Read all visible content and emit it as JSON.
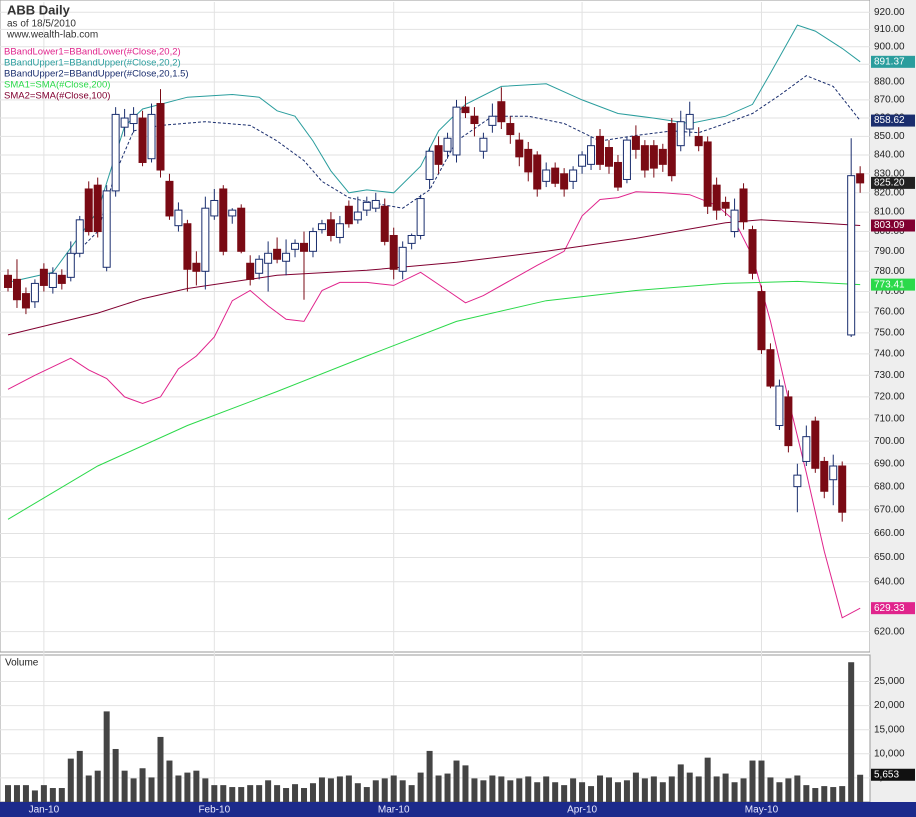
{
  "chart_data": [
    {
      "type": "candlestick",
      "title": "ABB Daily",
      "subtitle": "as of 18/5/2010",
      "source": "www.wealth-lab.com",
      "open": [
        778,
        776,
        769,
        765,
        781,
        772,
        778,
        777,
        789,
        822,
        824,
        782,
        821,
        855,
        857,
        860,
        838,
        868,
        826,
        803,
        804,
        784,
        780,
        808,
        822,
        808,
        812,
        784,
        779,
        784,
        791,
        785,
        791,
        794,
        790,
        801,
        806,
        797,
        813,
        806,
        811,
        812,
        813,
        798,
        780,
        794,
        798,
        827,
        845,
        842,
        840,
        866,
        861,
        842,
        856,
        869,
        857,
        848,
        843,
        840,
        826,
        833,
        830,
        826,
        834,
        835,
        850,
        844,
        836,
        827,
        850,
        845,
        845,
        843,
        857,
        845,
        854,
        850,
        847,
        824,
        815,
        800,
        822,
        801,
        770,
        742,
        707,
        720,
        680,
        691,
        709,
        691,
        683,
        689,
        749,
        830
      ],
      "high": [
        781,
        786,
        772,
        776,
        784,
        782,
        781,
        795,
        808,
        826,
        828,
        824,
        866,
        865,
        866,
        864,
        868,
        876,
        830,
        815,
        806,
        790,
        818,
        822,
        824,
        812,
        814,
        788,
        788,
        795,
        797,
        796,
        796,
        800,
        802,
        806,
        810,
        808,
        816,
        818,
        818,
        820,
        817,
        802,
        795,
        799,
        819,
        844,
        850,
        852,
        870,
        872,
        866,
        852,
        868,
        877,
        861,
        852,
        847,
        842,
        836,
        836,
        833,
        834,
        842,
        850,
        854,
        848,
        840,
        850,
        856,
        848,
        848,
        846,
        860,
        864,
        869,
        855,
        850,
        828,
        818,
        817,
        825,
        803,
        773,
        745,
        728,
        723,
        690,
        707,
        711,
        693,
        694,
        691,
        849,
        834
      ],
      "low": [
        770,
        762,
        759,
        762,
        770,
        769,
        771,
        775,
        787,
        798,
        797,
        780,
        818,
        850,
        852,
        834,
        836,
        828,
        806,
        800,
        770,
        773,
        771,
        806,
        788,
        804,
        789,
        773,
        776,
        770,
        784,
        778,
        787,
        766,
        787,
        799,
        795,
        794,
        802,
        804,
        808,
        810,
        793,
        776,
        776,
        791,
        796,
        822,
        830,
        838,
        836,
        860,
        850,
        838,
        852,
        854,
        846,
        834,
        826,
        818,
        823,
        823,
        818,
        822,
        830,
        832,
        832,
        830,
        821,
        825,
        838,
        828,
        828,
        831,
        826,
        842,
        850,
        842,
        809,
        806,
        808,
        797,
        801,
        776,
        740,
        724,
        705,
        695,
        669,
        689,
        686,
        675,
        672,
        665,
        748,
        820
      ],
      "close": [
        772,
        766,
        762,
        774,
        773,
        779,
        774,
        789,
        806,
        800,
        800,
        821,
        862,
        860,
        862,
        836,
        862,
        832,
        808,
        811,
        781,
        780,
        812,
        816,
        790,
        811,
        790,
        776,
        786,
        789,
        786,
        789,
        794,
        790,
        800,
        804,
        798,
        804,
        804,
        810,
        815,
        816,
        795,
        781,
        792,
        798,
        817,
        842,
        835,
        849,
        866,
        863,
        857,
        849,
        861,
        858,
        851,
        839,
        831,
        822,
        832,
        825,
        822,
        832,
        840,
        845,
        835,
        834,
        823,
        848,
        843,
        832,
        833,
        835,
        829,
        858,
        862,
        845,
        813,
        811,
        812,
        811,
        805,
        779,
        742,
        725,
        725,
        698,
        685,
        702,
        688,
        678,
        689,
        669,
        829,
        825.2
      ],
      "last_label": "825.20",
      "up_color": "#1a2e6e",
      "down_color": "#7a0a14",
      "log_scale": true,
      "grid": true,
      "ylim": [
        612,
        926
      ],
      "yticks": [
        {
          "value": 920,
          "label": "920.00"
        },
        {
          "value": 910,
          "label": "910.00"
        },
        {
          "value": 900,
          "label": "900.00"
        },
        {
          "value": 890,
          "label": "890.00"
        },
        {
          "value": 880,
          "label": "880.00"
        },
        {
          "value": 870,
          "label": "870.00"
        },
        {
          "value": 860,
          "label": "860.00"
        },
        {
          "value": 850,
          "label": "850.00"
        },
        {
          "value": 840,
          "label": "840.00"
        },
        {
          "value": 830,
          "label": "830.00"
        },
        {
          "value": 820,
          "label": "820.00"
        },
        {
          "value": 810,
          "label": "810.00"
        },
        {
          "value": 800,
          "label": "800.00"
        },
        {
          "value": 790,
          "label": "790.00"
        },
        {
          "value": 780,
          "label": "780.00"
        },
        {
          "value": 770,
          "label": "770.00"
        },
        {
          "value": 760,
          "label": "760.00"
        },
        {
          "value": 750,
          "label": "750.00"
        },
        {
          "value": 740,
          "label": "740.00"
        },
        {
          "value": 730,
          "label": "730.00"
        },
        {
          "value": 720,
          "label": "720.00"
        },
        {
          "value": 710,
          "label": "710.00"
        },
        {
          "value": 700,
          "label": "700.00"
        },
        {
          "value": 690,
          "label": "690.00"
        },
        {
          "value": 680,
          "label": "680.00"
        },
        {
          "value": 670,
          "label": "670.00"
        },
        {
          "value": 660,
          "label": "660.00"
        },
        {
          "value": 650,
          "label": "650.00"
        },
        {
          "value": 640,
          "label": "640.00"
        },
        {
          "value": 620,
          "label": "620.00"
        }
      ],
      "xticks": [
        {
          "value": 4,
          "label": "Jan-10"
        },
        {
          "value": 23,
          "label": "Feb-10"
        },
        {
          "value": 43,
          "label": "Mar-10"
        },
        {
          "value": 64,
          "label": "Apr-10"
        },
        {
          "value": 84,
          "label": "May-10"
        }
      ],
      "lines": [
        {
          "name": "BBandLower1=BBandLower(#Close,20,2)",
          "color": "#e0248c",
          "dashed": false,
          "last_label": "629.33",
          "x": [
            0,
            3,
            7,
            9,
            11,
            13,
            15,
            17,
            19,
            21,
            23,
            25,
            27,
            29,
            31,
            33,
            35,
            37,
            40,
            43,
            46,
            49,
            51,
            53,
            56,
            59,
            62,
            64,
            66,
            68,
            70,
            73,
            76,
            79,
            81,
            83,
            85,
            87,
            89,
            91,
            93,
            95
          ],
          "values": [
            723.5,
            730,
            738,
            732.5,
            728.5,
            720,
            717,
            720,
            733,
            739,
            748,
            765.5,
            770.5,
            763,
            756.5,
            755.5,
            770.5,
            774.5,
            774.5,
            773,
            779.5,
            770.5,
            764.5,
            768,
            775.5,
            783,
            790,
            808,
            816.5,
            817.5,
            820.5,
            820,
            819,
            813.5,
            805.5,
            787.5,
            755.5,
            719,
            686,
            652.5,
            625.5,
            629.33
          ]
        },
        {
          "name": "BBandUpper1=BBandUpper(#Close,20,2)",
          "color": "#2a9d9d",
          "dashed": false,
          "last_label": "891.37",
          "x": [
            0,
            5,
            10,
            13,
            15,
            20,
            25,
            28,
            30,
            32,
            34,
            36,
            38,
            40,
            43,
            46,
            48,
            51,
            55,
            60,
            64,
            68,
            72,
            76,
            80,
            83,
            85,
            88,
            90,
            93,
            95
          ],
          "values": [
            774.5,
            779.5,
            810.5,
            855.5,
            865,
            871.5,
            873,
            871.5,
            864,
            861,
            847.5,
            831.5,
            820,
            821.5,
            820,
            834,
            853,
            867.5,
            877.5,
            879,
            870,
            862.5,
            860,
            857,
            861,
            867.5,
            885,
            912.5,
            909,
            899,
            891.37
          ]
        },
        {
          "name": "BBandUpper2=BBandUpper(#Close,20,1.5)",
          "color": "#1a2e6e",
          "dashed": true,
          "last_label": "858.62",
          "x": [
            7,
            10,
            12,
            14,
            17,
            22,
            27,
            30,
            33,
            35,
            38,
            41,
            44,
            47,
            50,
            54,
            58,
            62,
            66,
            70,
            74,
            77,
            80,
            83,
            86,
            89,
            92,
            95
          ],
          "values": [
            786.5,
            800,
            830.5,
            853,
            856,
            858,
            856,
            847.5,
            837,
            826,
            817.5,
            814.5,
            812,
            821.5,
            847.5,
            861,
            861,
            857,
            847.5,
            850.5,
            853,
            852,
            857,
            862.5,
            872.5,
            883.5,
            877.5,
            858.62
          ]
        },
        {
          "name": "SMA1=SMA(#Close,200)",
          "color": "#2bd94a",
          "dashed": false,
          "last_label": "773.41",
          "x": [
            0,
            10,
            20,
            30,
            40,
            50,
            60,
            70,
            80,
            88,
            95
          ],
          "values": [
            666,
            689,
            707,
            722.5,
            739,
            755.5,
            765.5,
            770.5,
            774,
            775,
            773.41
          ]
        },
        {
          "name": "SMA2=SMA(#Close,100)",
          "color": "#800030",
          "dashed": false,
          "last_label": "803.09",
          "x": [
            0,
            10,
            15,
            20,
            30,
            40,
            50,
            60,
            70,
            80,
            84,
            90,
            95
          ],
          "values": [
            749,
            759.5,
            766.5,
            771.5,
            778,
            780.5,
            784.5,
            790,
            796.5,
            804.5,
            806,
            804.5,
            803.09
          ]
        }
      ]
    },
    {
      "type": "bar",
      "title": "Volume",
      "color": "#444444",
      "last_label": "5,653",
      "grid": true,
      "values": [
        3500,
        3500,
        3500,
        2400,
        3500,
        2900,
        2900,
        9000,
        10600,
        5500,
        6500,
        18800,
        11000,
        6500,
        4900,
        7000,
        5100,
        13500,
        8600,
        5500,
        6100,
        6500,
        4900,
        3500,
        3500,
        3100,
        3100,
        3500,
        3500,
        4500,
        3500,
        2900,
        3700,
        2900,
        3900,
        5100,
        4900,
        5300,
        5500,
        3900,
        3100,
        4500,
        4900,
        5500,
        4500,
        3500,
        6100,
        10600,
        5500,
        5900,
        8600,
        7600,
        4900,
        4500,
        5500,
        5300,
        4500,
        4900,
        5300,
        4100,
        5300,
        4100,
        3500,
        4900,
        4100,
        3300,
        5500,
        5100,
        4100,
        4500,
        6100,
        4900,
        5300,
        4100,
        5300,
        7800,
        6100,
        5300,
        9200,
        5300,
        5900,
        4100,
        4900,
        8600,
        8600,
        5100,
        4100,
        4900,
        5500,
        3500,
        2900,
        3300,
        3100,
        3300,
        29000,
        5653
      ],
      "ylim": [
        0,
        30500
      ],
      "yticks": [
        {
          "value": 5000,
          "label": "5,000"
        },
        {
          "value": 10000,
          "label": "10,000"
        },
        {
          "value": 15000,
          "label": "15,000"
        },
        {
          "value": 20000,
          "label": "20,000"
        },
        {
          "value": 25000,
          "label": "25,000"
        }
      ]
    }
  ]
}
